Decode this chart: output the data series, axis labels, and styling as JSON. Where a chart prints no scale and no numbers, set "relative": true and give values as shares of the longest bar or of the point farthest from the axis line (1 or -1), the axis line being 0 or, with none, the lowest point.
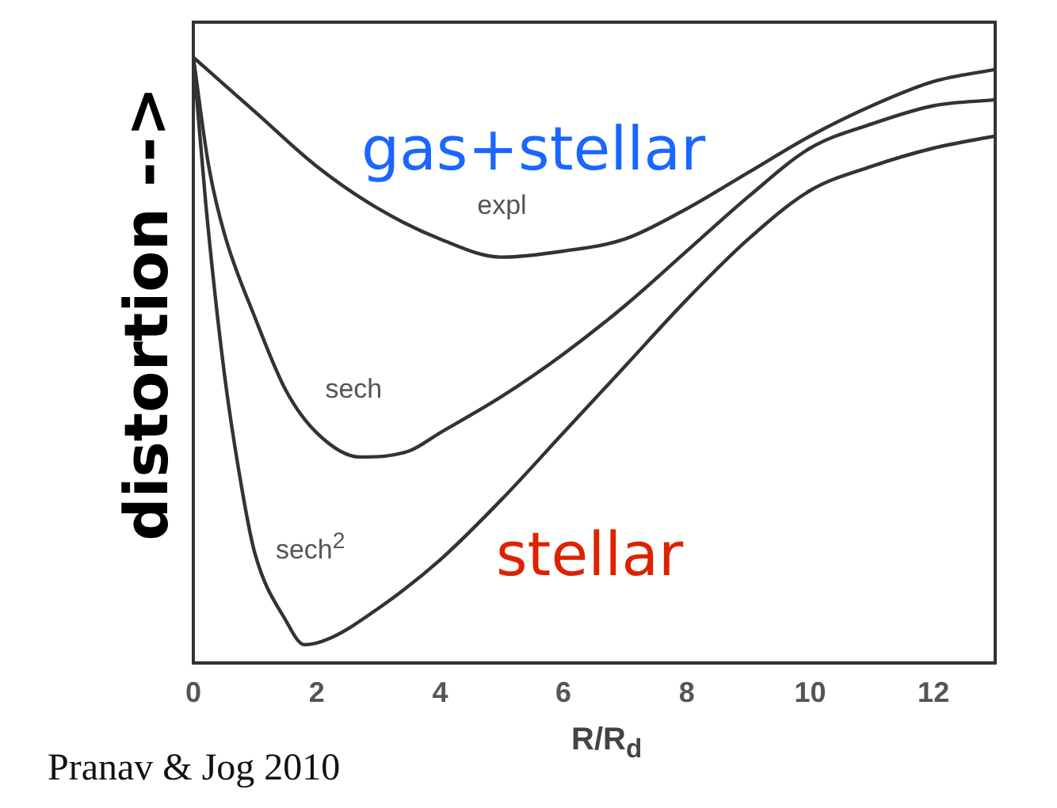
{
  "chart_data": {
    "type": "line",
    "relative": true,
    "xlabel": "R/R$_{d}$",
    "ylabel": "distortion -->",
    "xlim": [
      0,
      13
    ],
    "xticks": [
      0,
      2,
      4,
      6,
      8,
      10,
      12
    ],
    "grid": false,
    "legend": false,
    "marker": "none",
    "line_style": "solid",
    "series": [
      {
        "name": "expl",
        "color": "#333333",
        "x": [
          0,
          1,
          2,
          3,
          4,
          5,
          6,
          7,
          8,
          9,
          10,
          11,
          12,
          13
        ],
        "values": [
          1,
          0.91,
          0.82,
          0.75,
          0.7,
          0.67,
          0.68,
          0.7,
          0.75,
          0.81,
          0.87,
          0.92,
          0.96,
          0.98
        ]
      },
      {
        "name": "sech",
        "color": "#333333",
        "x": [
          0,
          0.25,
          0.5,
          1,
          1.5,
          2,
          2.7,
          3.5,
          4,
          5,
          6,
          7,
          8,
          9,
          10,
          11,
          12,
          13
        ],
        "values": [
          1,
          0.82,
          0.71,
          0.57,
          0.45,
          0.38,
          0.34,
          0.35,
          0.38,
          0.44,
          0.51,
          0.59,
          0.68,
          0.77,
          0.85,
          0.89,
          0.92,
          0.93
        ]
      },
      {
        "name": "sech$^{2}$",
        "color": "#333333",
        "x": [
          0,
          0.2,
          0.5,
          0.8,
          1,
          1.5,
          1.8,
          2.2,
          3,
          4,
          5,
          6,
          7,
          8,
          9,
          10,
          11,
          12,
          13
        ],
        "values": [
          1,
          0.76,
          0.48,
          0.28,
          0.18,
          0.07,
          0.03,
          0.04,
          0.09,
          0.17,
          0.27,
          0.38,
          0.49,
          0.6,
          0.7,
          0.78,
          0.82,
          0.85,
          0.87
        ]
      }
    ],
    "annotations": [
      "gas+stellar",
      "stellar",
      "Pranav & Jog 2010"
    ]
  }
}
